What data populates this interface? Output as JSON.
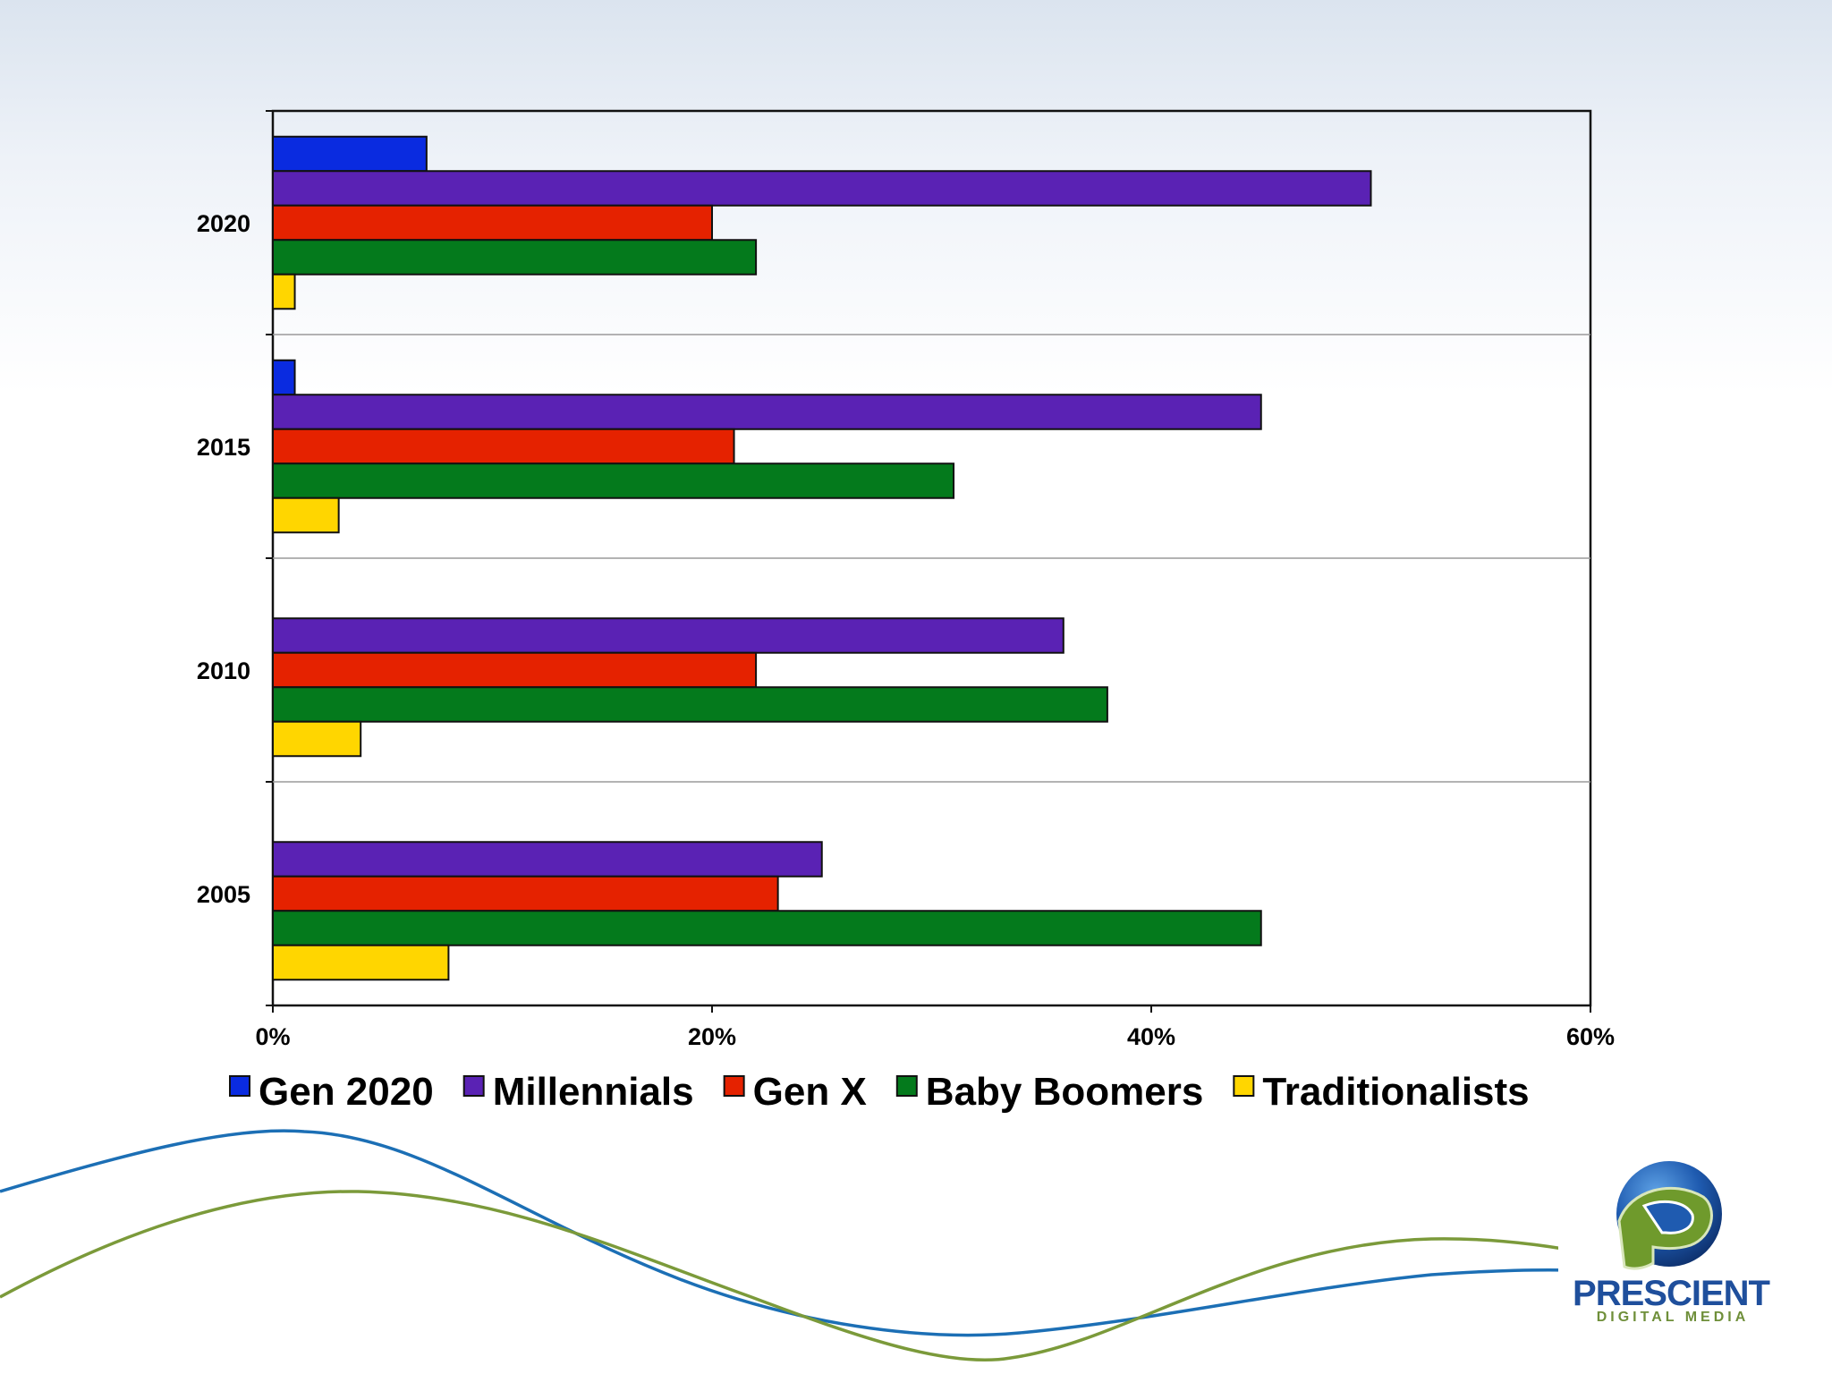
{
  "chart_data": {
    "type": "bar",
    "orientation": "horizontal",
    "categories": [
      "2020",
      "2015",
      "2010",
      "2005"
    ],
    "series": [
      {
        "name": "Gen 2020",
        "color": "#0a2be0",
        "values": [
          7,
          1,
          0,
          0
        ]
      },
      {
        "name": "Millennials",
        "color": "#5a22b4",
        "values": [
          50,
          45,
          36,
          25
        ]
      },
      {
        "name": "Gen X",
        "color": "#e52200",
        "values": [
          20,
          21,
          22,
          23
        ]
      },
      {
        "name": "Baby Boomers",
        "color": "#047a1c",
        "values": [
          22,
          31,
          38,
          45
        ]
      },
      {
        "name": "Traditionalists",
        "color": "#ffd600",
        "values": [
          1,
          3,
          4,
          8
        ]
      }
    ],
    "x_ticks": [
      "0%",
      "20%",
      "40%",
      "60%"
    ],
    "xlim": [
      0,
      60
    ],
    "title": "",
    "xlabel": "",
    "ylabel": "",
    "grid": "horizontal separators between categories",
    "legend_position": "bottom"
  },
  "logo": {
    "name": "PRESCIENT",
    "subtitle": "DIGITAL MEDIA",
    "icon": "p-globe-icon"
  }
}
